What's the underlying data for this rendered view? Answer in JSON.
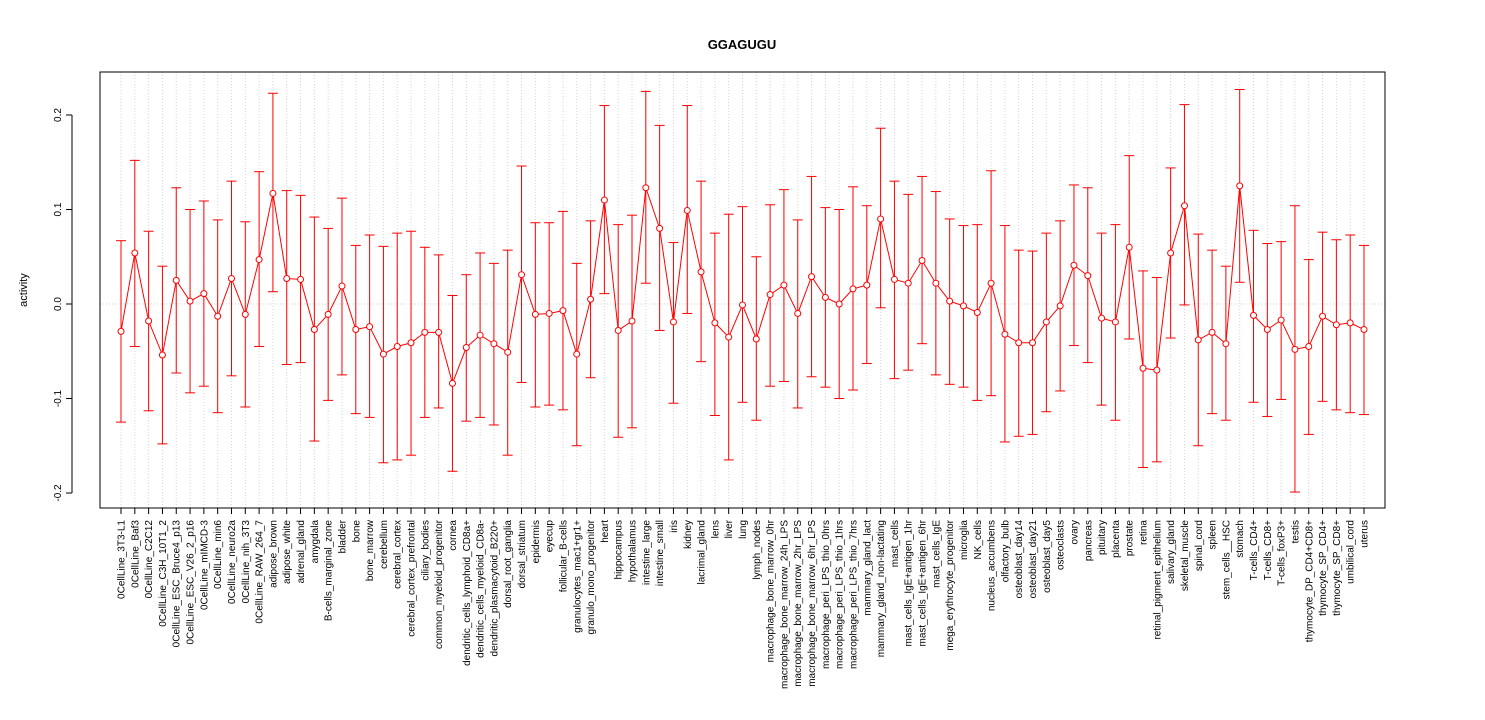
{
  "chart_data": {
    "type": "scatter",
    "title": "GGAGUGU",
    "xlabel": "",
    "ylabel": "activity",
    "ylim": [
      -0.22,
      0.245
    ],
    "yticks": [
      -0.2,
      -0.1,
      0.0,
      0.1,
      0.2
    ],
    "ytick_labels": [
      "-0.2",
      "-0.1",
      "0.0",
      "0.1",
      "0.2"
    ],
    "grid": true,
    "line_color": "#ff0000",
    "categories": [
      "0CellLine_3T3-L1",
      "0CellLine_Baf3",
      "0CellLine_C2C12",
      "0CellLine_C3H_10T1_2",
      "0CellLine_ESC_Bruce4_p13",
      "0CellLine_ESC_V26_2_p16",
      "0CellLine_mIMCD-3",
      "0CellLine_min6",
      "0CellLine_neuro2a",
      "0CellLine_nih_3T3",
      "0CellLine_RAW_264_7",
      "adipose_brown",
      "adipose_white",
      "adrenal_gland",
      "amygdala",
      "B-cells_marginal_zone",
      "bladder",
      "bone",
      "bone_marrow",
      "cerebellum",
      "cerebral_cortex",
      "cerebral_cortex_prefrontal",
      "ciliary_bodies",
      "common_myeloid_progenitor",
      "cornea",
      "dendritic_cells_lymphoid_CD8a+",
      "dendritic_cells_myeloid_CD8a-",
      "dendritic_plasmacytoid_B220+",
      "dorsal_root_ganglia",
      "dorsal_striatum",
      "epidermis",
      "eyecup",
      "follicular_B-cells",
      "granulocytes_mac1+gr1+",
      "granulo_mono_progenitor",
      "heart",
      "hippocampus",
      "hypothalamus",
      "intestine_large",
      "intestine_small",
      "iris",
      "kidney",
      "lacrimal_gland",
      "lens",
      "liver",
      "lung",
      "lymph_nodes",
      "macrophage_bone_marrow_0hr",
      "macrophage_bone_marrow_24h_LPS",
      "macrophage_bone_marrow_2hr_LPS",
      "macrophage_bone_marrow_6hr_LPS",
      "macrophage_peri_LPS_thio_0hrs",
      "macrophage_peri_LPS_thio_1hrs",
      "macrophage_peri_LPS_thio_7hrs",
      "mammary_gland_lact",
      "mammary_gland_non-lactating",
      "mast_cells",
      "mast_cells_IgE+antigen_1hr",
      "mast_cells_IgE+antigen_6hr",
      "mast_cells_IgE",
      "mega_erythrocyte_progenitor",
      "microglia",
      "NK_cells",
      "nucleus_accumbens",
      "olfactory_bulb",
      "osteoblast_day14",
      "osteoblast_day21",
      "osteoblast_day5",
      "osteoclasts",
      "ovary",
      "pancreas",
      "pituitary",
      "placenta",
      "prostate",
      "retina",
      "retinal_pigment_epithelium",
      "salivary_gland",
      "skeletal_muscle",
      "spinal_cord",
      "spleen",
      "stem_cells__HSC",
      "stomach",
      "T-cells_CD4+",
      "T-cells_CD8+",
      "T-cells_foxP3+",
      "testis",
      "thymocyte_DP_CD4+CD8+",
      "thymocyte_SP_CD4+",
      "thymocyte_SP_CD8+",
      "umbilical_cord",
      "uterus"
    ],
    "values": [
      -0.029,
      0.054,
      -0.018,
      -0.054,
      0.025,
      0.003,
      0.011,
      -0.013,
      0.027,
      -0.011,
      0.047,
      0.117,
      0.027,
      0.026,
      -0.027,
      -0.011,
      0.019,
      -0.027,
      -0.024,
      -0.053,
      -0.045,
      -0.041,
      -0.03,
      -0.03,
      -0.084,
      -0.046,
      -0.033,
      -0.042,
      -0.051,
      0.031,
      -0.011,
      -0.01,
      -0.007,
      -0.053,
      0.005,
      0.11,
      -0.028,
      -0.018,
      0.123,
      0.08,
      -0.019,
      0.099,
      0.034,
      -0.02,
      -0.035,
      -0.001,
      -0.037,
      0.01,
      0.02,
      -0.01,
      0.029,
      0.007,
      0.0,
      0.016,
      0.02,
      0.09,
      0.026,
      0.022,
      0.046,
      0.022,
      0.003,
      -0.002,
      -0.009,
      0.022,
      -0.032,
      -0.041,
      -0.041,
      -0.019,
      -0.002,
      0.041,
      0.03,
      -0.015,
      -0.019,
      0.06,
      -0.068,
      -0.07,
      0.054,
      0.104,
      -0.038,
      -0.03,
      -0.042,
      0.125,
      -0.012,
      -0.027,
      -0.017,
      -0.048,
      -0.045,
      -0.013,
      -0.022,
      -0.02,
      -0.027
    ],
    "upper": [
      0.067,
      0.152,
      0.077,
      0.04,
      0.123,
      0.1,
      0.109,
      0.089,
      0.13,
      0.087,
      0.14,
      0.223,
      0.12,
      0.115,
      0.092,
      0.08,
      0.112,
      0.062,
      0.073,
      0.061,
      0.075,
      0.077,
      0.06,
      0.052,
      0.009,
      0.031,
      0.054,
      0.043,
      0.057,
      0.146,
      0.086,
      0.086,
      0.098,
      0.043,
      0.088,
      0.21,
      0.084,
      0.094,
      0.225,
      0.189,
      0.065,
      0.21,
      0.13,
      0.075,
      0.095,
      0.103,
      0.05,
      0.105,
      0.121,
      0.089,
      0.135,
      0.102,
      0.1,
      0.124,
      0.104,
      0.186,
      0.13,
      0.116,
      0.135,
      0.119,
      0.09,
      0.083,
      0.084,
      0.141,
      0.083,
      0.057,
      0.056,
      0.075,
      0.088,
      0.126,
      0.123,
      0.075,
      0.084,
      0.157,
      0.035,
      0.028,
      0.144,
      0.211,
      0.074,
      0.057,
      0.04,
      0.227,
      0.078,
      0.064,
      0.066,
      0.104,
      0.047,
      0.076,
      0.068,
      0.073,
      0.062
    ],
    "lower": [
      -0.125,
      -0.045,
      -0.113,
      -0.148,
      -0.073,
      -0.094,
      -0.087,
      -0.115,
      -0.076,
      -0.109,
      -0.045,
      0.013,
      -0.064,
      -0.062,
      -0.145,
      -0.102,
      -0.075,
      -0.116,
      -0.12,
      -0.168,
      -0.165,
      -0.16,
      -0.12,
      -0.11,
      -0.177,
      -0.124,
      -0.12,
      -0.128,
      -0.16,
      -0.083,
      -0.109,
      -0.107,
      -0.112,
      -0.15,
      -0.078,
      0.011,
      -0.141,
      -0.131,
      0.022,
      -0.028,
      -0.105,
      -0.01,
      -0.061,
      -0.118,
      -0.165,
      -0.104,
      -0.123,
      -0.087,
      -0.082,
      -0.11,
      -0.077,
      -0.088,
      -0.1,
      -0.091,
      -0.063,
      -0.004,
      -0.079,
      -0.07,
      -0.042,
      -0.075,
      -0.085,
      -0.088,
      -0.102,
      -0.097,
      -0.146,
      -0.14,
      -0.138,
      -0.114,
      -0.092,
      -0.044,
      -0.062,
      -0.107,
      -0.123,
      -0.037,
      -0.173,
      -0.167,
      -0.036,
      -0.001,
      -0.15,
      -0.116,
      -0.123,
      0.023,
      -0.104,
      -0.119,
      -0.101,
      -0.199,
      -0.138,
      -0.103,
      -0.112,
      -0.115,
      -0.117
    ]
  }
}
